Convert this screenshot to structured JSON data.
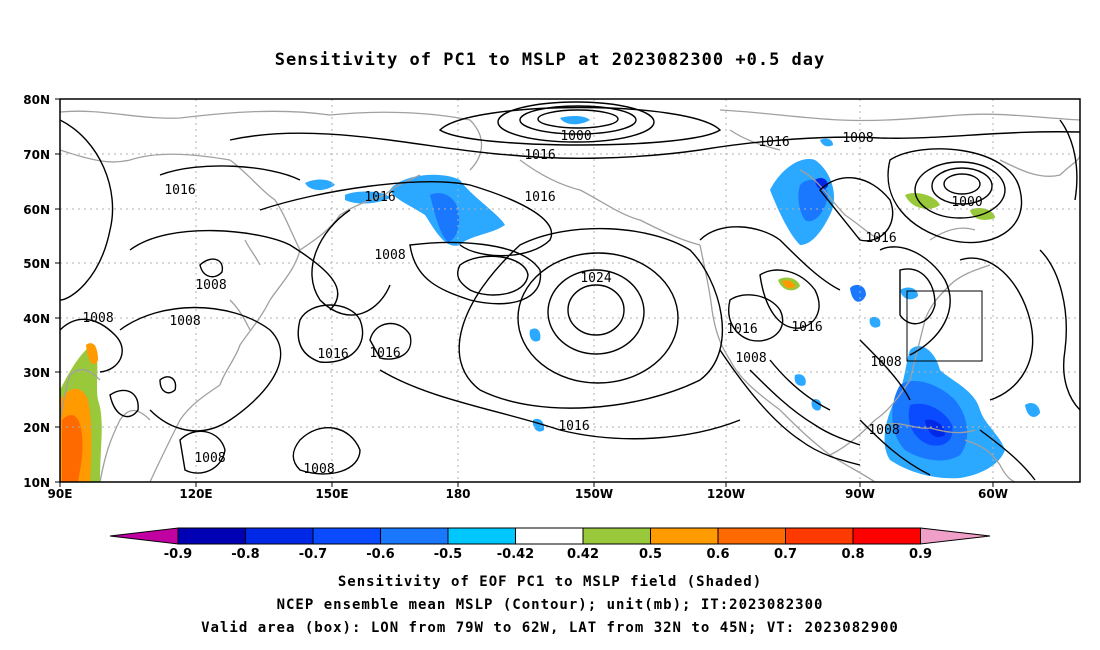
{
  "title": "Sensitivity of PC1 to MSLP at 2023082300 +0.5 day",
  "axes": {
    "lat_labels": [
      "80N",
      "70N",
      "60N",
      "50N",
      "40N",
      "30N",
      "20N",
      "10N"
    ],
    "lon_labels": [
      "90E",
      "120E",
      "150E",
      "180",
      "150W",
      "120W",
      "90W",
      "60W"
    ]
  },
  "contour_labels": [
    {
      "text": "1000"
    },
    {
      "text": "1016"
    },
    {
      "text": "1016"
    },
    {
      "text": "1008"
    },
    {
      "text": "1016"
    },
    {
      "text": "1016"
    },
    {
      "text": "1008"
    },
    {
      "text": "1000"
    },
    {
      "text": "1016"
    },
    {
      "text": "1008"
    },
    {
      "text": "1008"
    },
    {
      "text": "1024"
    },
    {
      "text": "1008"
    },
    {
      "text": "1008"
    },
    {
      "text": "1016"
    },
    {
      "text": "1016"
    },
    {
      "text": "1016"
    },
    {
      "text": "1016"
    },
    {
      "text": "1008"
    },
    {
      "text": "1016"
    },
    {
      "text": "1016"
    },
    {
      "text": "1008"
    },
    {
      "text": "1008"
    },
    {
      "text": "1008"
    }
  ],
  "colorbar": {
    "labels": [
      "-0.9",
      "-0.8",
      "-0.7",
      "-0.6",
      "-0.5",
      "-0.42",
      "0.42",
      "0.5",
      "0.6",
      "0.7",
      "0.8",
      "0.9"
    ],
    "colors": [
      "#c000a0",
      "#0000b4",
      "#0028e6",
      "#0a4bff",
      "#1a78ff",
      "#2ba8ff",
      "#00c8ff",
      "#ffffff",
      "#99c83a",
      "#ff9a00",
      "#ff6a00",
      "#ff3a00",
      "#ff0000",
      "#f0a0c8"
    ]
  },
  "captions": [
    "Sensitivity of EOF PC1 to MSLP field (Shaded)",
    "NCEP ensemble mean MSLP (Contour); unit(mb); IT:2023082300",
    "Valid area (box): LON from 79W to 62W, LAT from 32N to 45N; VT: 2023082900"
  ]
}
